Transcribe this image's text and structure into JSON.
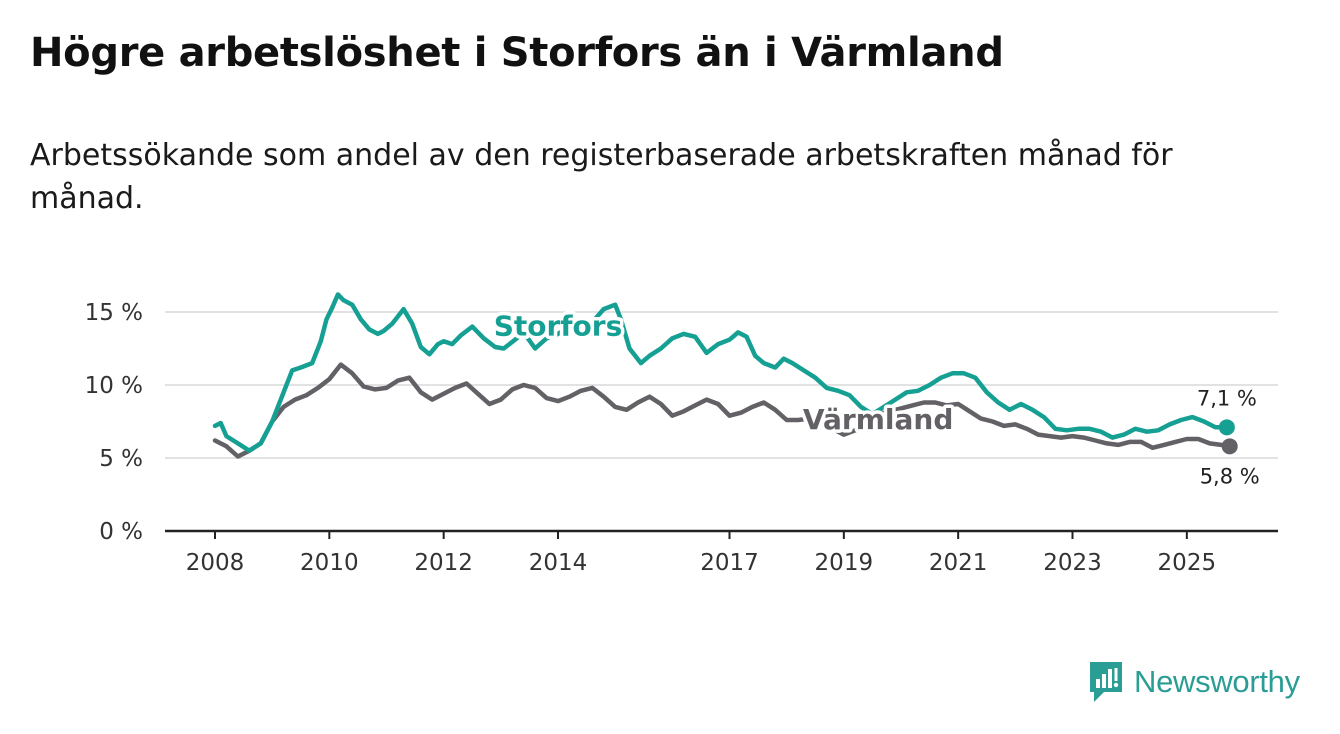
{
  "title": "Högre arbetslöshet i Storfors än i Värmland",
  "subtitle": "Arbetssökande som andel av den registerbaserade arbetskraften månad för månad.",
  "logo_text": "Newsworthy",
  "chart_data": {
    "type": "line",
    "title": "Högre arbetslöshet i Storfors än i Värmland",
    "subtitle": "Arbetssökande som andel av den registerbaserade arbetskraften månad för månad.",
    "xlabel": "",
    "ylabel": "",
    "xlim": [
      2007.8,
      2026.7
    ],
    "ylim": [
      0,
      15
    ],
    "yticks": [
      0,
      5,
      10,
      15
    ],
    "ytick_labels": [
      "0 %",
      "5 %",
      "10 %",
      "15 %"
    ],
    "xticks": [
      2008,
      2010,
      2012,
      2014,
      2017,
      2019,
      2021,
      2023,
      2025
    ],
    "xtick_labels": [
      "2008",
      "2010",
      "2012",
      "2014",
      "2017",
      "2019",
      "2021",
      "2023",
      "2025"
    ],
    "grid": true,
    "legend": "inline labels",
    "series": [
      {
        "name": "Storfors",
        "color": "#16a093",
        "end_label": "7,1 %",
        "x": [
          2008.0,
          2008.1,
          2008.2,
          2008.4,
          2008.6,
          2008.8,
          2009.0,
          2009.2,
          2009.35,
          2009.5,
          2009.7,
          2009.85,
          2009.95,
          2010.05,
          2010.15,
          2010.25,
          2010.4,
          2010.55,
          2010.7,
          2010.85,
          2010.95,
          2011.1,
          2011.3,
          2011.45,
          2011.6,
          2011.75,
          2011.9,
          2012.0,
          2012.15,
          2012.3,
          2012.5,
          2012.7,
          2012.9,
          2013.05,
          2013.25,
          2013.4,
          2013.6,
          2013.8,
          2014.0,
          2014.2,
          2014.4,
          2014.6,
          2014.8,
          2015.0,
          2015.1,
          2015.25,
          2015.45,
          2015.6,
          2015.8,
          2016.0,
          2016.2,
          2016.4,
          2016.6,
          2016.8,
          2017.0,
          2017.15,
          2017.3,
          2017.45,
          2017.6,
          2017.8,
          2017.95,
          2018.1,
          2018.3,
          2018.5,
          2018.7,
          2018.9,
          2019.1,
          2019.3,
          2019.5,
          2019.7,
          2019.9,
          2020.1,
          2020.3,
          2020.5,
          2020.7,
          2020.9,
          2021.1,
          2021.3,
          2021.5,
          2021.7,
          2021.9,
          2022.1,
          2022.3,
          2022.5,
          2022.7,
          2022.9,
          2023.1,
          2023.3,
          2023.5,
          2023.7,
          2023.9,
          2024.1,
          2024.3,
          2024.5,
          2024.7,
          2024.9,
          2025.1,
          2025.3,
          2025.5,
          2025.7
        ],
        "y": [
          7.2,
          7.4,
          6.5,
          6.0,
          5.5,
          6.0,
          7.5,
          9.5,
          11.0,
          11.2,
          11.5,
          13.0,
          14.5,
          15.3,
          16.2,
          15.8,
          15.5,
          14.5,
          13.8,
          13.5,
          13.7,
          14.2,
          15.2,
          14.2,
          12.6,
          12.1,
          12.8,
          13.0,
          12.8,
          13.4,
          14.0,
          13.2,
          12.6,
          12.5,
          13.1,
          13.6,
          12.5,
          13.2,
          13.5,
          14.0,
          13.8,
          14.3,
          15.2,
          15.5,
          14.5,
          12.5,
          11.5,
          12.0,
          12.5,
          13.2,
          13.5,
          13.3,
          12.2,
          12.8,
          13.1,
          13.6,
          13.3,
          12.0,
          11.5,
          11.2,
          11.8,
          11.5,
          11.0,
          10.5,
          9.8,
          9.6,
          9.3,
          8.5,
          8.0,
          8.5,
          9.0,
          9.5,
          9.6,
          10.0,
          10.5,
          10.8,
          10.8,
          10.5,
          9.5,
          8.8,
          8.3,
          8.7,
          8.3,
          7.8,
          7.0,
          6.9,
          7.0,
          7.0,
          6.8,
          6.4,
          6.6,
          7.0,
          6.8,
          6.9,
          7.3,
          7.6,
          7.8,
          7.5,
          7.1,
          7.1
        ]
      },
      {
        "name": "Värmland",
        "color": "#636066",
        "end_label": "5,8 %",
        "x": [
          2008.0,
          2008.2,
          2008.4,
          2008.6,
          2008.8,
          2009.0,
          2009.2,
          2009.4,
          2009.6,
          2009.8,
          2010.0,
          2010.2,
          2010.4,
          2010.6,
          2010.8,
          2011.0,
          2011.2,
          2011.4,
          2011.6,
          2011.8,
          2012.0,
          2012.2,
          2012.4,
          2012.6,
          2012.8,
          2013.0,
          2013.2,
          2013.4,
          2013.6,
          2013.8,
          2014.0,
          2014.2,
          2014.4,
          2014.6,
          2014.8,
          2015.0,
          2015.2,
          2015.4,
          2015.6,
          2015.8,
          2016.0,
          2016.2,
          2016.4,
          2016.6,
          2016.8,
          2017.0,
          2017.2,
          2017.4,
          2017.6,
          2017.8,
          2018.0,
          2018.2,
          2018.4,
          2018.6,
          2018.8,
          2019.0,
          2019.2,
          2019.4,
          2019.6,
          2019.8,
          2020.0,
          2020.2,
          2020.4,
          2020.6,
          2020.8,
          2021.0,
          2021.2,
          2021.4,
          2021.6,
          2021.8,
          2022.0,
          2022.2,
          2022.4,
          2022.6,
          2022.8,
          2023.0,
          2023.2,
          2023.4,
          2023.6,
          2023.8,
          2024.0,
          2024.2,
          2024.4,
          2024.6,
          2024.8,
          2025.0,
          2025.2,
          2025.4,
          2025.6,
          2025.75
        ],
        "y": [
          6.2,
          5.8,
          5.1,
          5.5,
          6.0,
          7.5,
          8.5,
          9.0,
          9.3,
          9.8,
          10.4,
          11.4,
          10.8,
          9.9,
          9.7,
          9.8,
          10.3,
          10.5,
          9.5,
          9.0,
          9.4,
          9.8,
          10.1,
          9.4,
          8.7,
          9.0,
          9.7,
          10.0,
          9.8,
          9.1,
          8.9,
          9.2,
          9.6,
          9.8,
          9.2,
          8.5,
          8.3,
          8.8,
          9.2,
          8.7,
          7.9,
          8.2,
          8.6,
          9.0,
          8.7,
          7.9,
          8.1,
          8.5,
          8.8,
          8.3,
          7.6,
          7.6,
          7.7,
          7.5,
          7.0,
          6.6,
          6.9,
          7.6,
          8.0,
          8.2,
          8.4,
          8.6,
          8.8,
          8.8,
          8.6,
          8.7,
          8.2,
          7.7,
          7.5,
          7.2,
          7.3,
          7.0,
          6.6,
          6.5,
          6.4,
          6.5,
          6.4,
          6.2,
          6.0,
          5.9,
          6.1,
          6.1,
          5.7,
          5.9,
          6.1,
          6.3,
          6.3,
          6.0,
          5.9,
          5.8
        ]
      }
    ]
  }
}
